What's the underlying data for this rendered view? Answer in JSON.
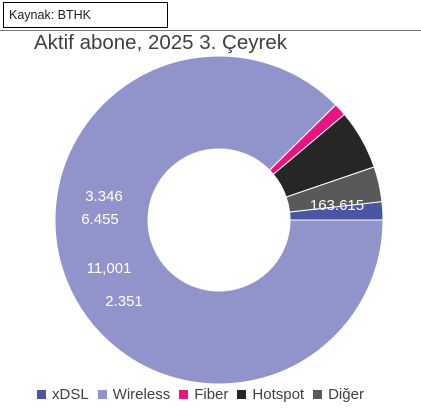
{
  "source": "Kaynak: BTHK",
  "chart_data": {
    "type": "pie",
    "variant": "donut",
    "title": "Aktif abone, 2025 3. Çeyrek",
    "start_angle_deg": 0,
    "direction": "counterclockwise",
    "legend_position": "bottom",
    "slices": [
      {
        "name": "xDSL",
        "value": 3346,
        "label": "3.346",
        "color": "#4a55a5",
        "show_label": true
      },
      {
        "name": "Diğer",
        "value": 6455,
        "label": "6.455",
        "color": "#595959",
        "show_label": true
      },
      {
        "name": "Hotspot",
        "value": 11001,
        "label": "11,001",
        "color": "#262626",
        "show_label": true
      },
      {
        "name": "Fiber",
        "value": 2351,
        "label": "2.351",
        "color": "#e8157f",
        "show_label": true
      },
      {
        "name": "Wireless",
        "value": 163615,
        "label": "163.615",
        "color": "#9194cb",
        "show_label": true
      }
    ],
    "legend": [
      {
        "name": "xDSL",
        "color": "#4a55a5"
      },
      {
        "name": "Wireless",
        "color": "#9194cb"
      },
      {
        "name": "Fiber",
        "color": "#e8157f"
      },
      {
        "name": "Hotspot",
        "color": "#262626"
      },
      {
        "name": "Diğer",
        "color": "#595959"
      }
    ]
  }
}
